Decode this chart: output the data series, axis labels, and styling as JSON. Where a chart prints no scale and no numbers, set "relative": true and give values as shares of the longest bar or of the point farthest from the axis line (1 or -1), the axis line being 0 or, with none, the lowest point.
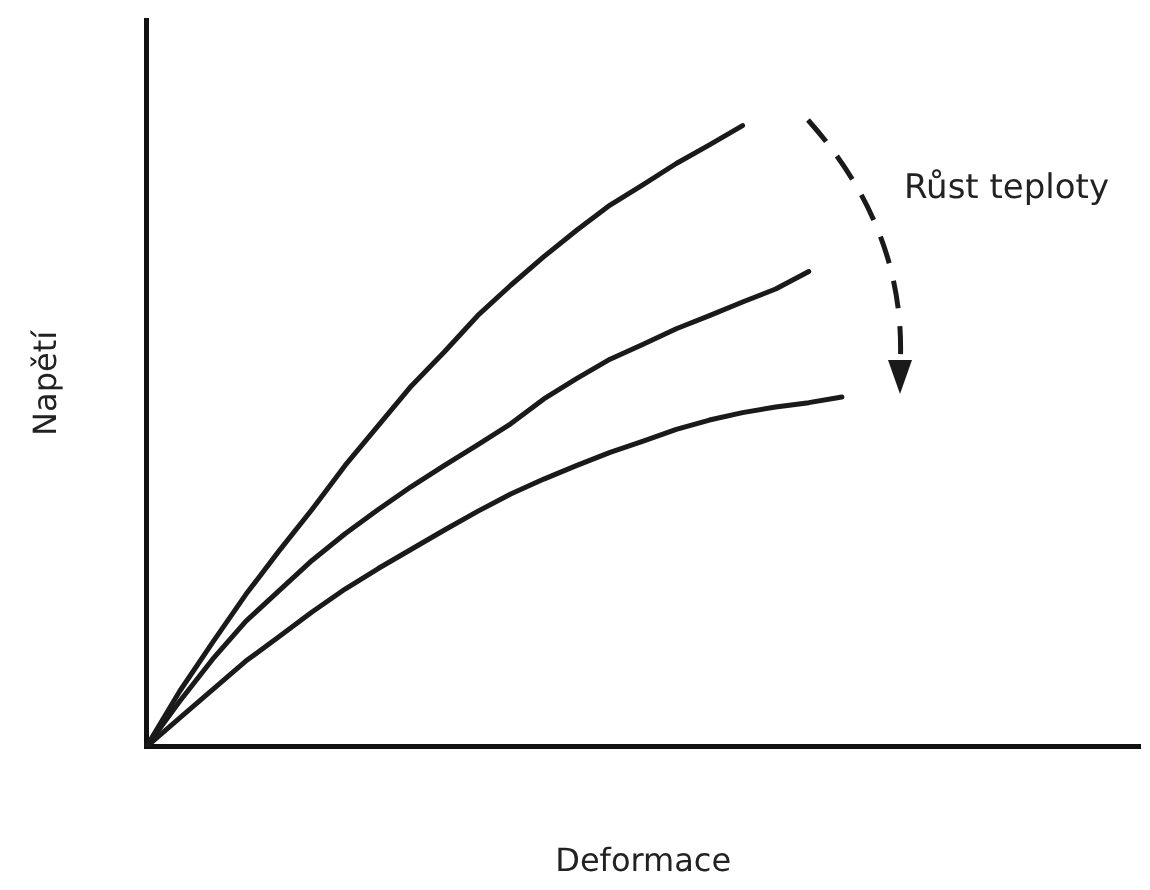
{
  "chart_data": {
    "type": "line",
    "relative": true,
    "xlabel": "Deformace",
    "ylabel": "Napětí",
    "annotations": [
      "Růst teploty"
    ],
    "legend": false,
    "marker": "none",
    "line_style": "solid",
    "categories": [
      null,
      null,
      null,
      null,
      null,
      null,
      null,
      null,
      null,
      null,
      null,
      null,
      null,
      null,
      null,
      null,
      null,
      null,
      null,
      null,
      null,
      null,
      null,
      null,
      null,
      null,
      null,
      null,
      null,
      null,
      null
    ],
    "series": [
      {
        "color": "#1a1a1a",
        "values": [
          0,
          0.089,
          0.168,
          0.245,
          0.315,
          0.382,
          0.453,
          0.517,
          0.581,
          0.636,
          0.694,
          0.743,
          0.789,
          0.832,
          0.872,
          0.905,
          0.939,
          0.969,
          1,
          null,
          null,
          null,
          null,
          null,
          null,
          null,
          null,
          null,
          null,
          null,
          null
        ]
      },
      {
        "color": "#1a1a1a",
        "values": [
          0,
          0.073,
          0.141,
          0.202,
          0.251,
          0.3,
          0.343,
          0.382,
          0.419,
          0.453,
          0.486,
          0.52,
          0.56,
          0.593,
          0.624,
          0.648,
          0.673,
          0.694,
          0.716,
          0.737,
          0.765,
          null,
          null,
          null,
          null,
          null,
          null,
          null,
          null,
          null,
          null
        ]
      },
      {
        "color": "#1a1a1a",
        "values": [
          0,
          0.046,
          0.092,
          0.138,
          0.177,
          0.217,
          0.254,
          0.287,
          0.318,
          0.349,
          0.379,
          0.407,
          0.431,
          0.453,
          0.474,
          0.492,
          0.511,
          0.526,
          0.538,
          0.547,
          0.554,
          0.563,
          null,
          null,
          null,
          null,
          null,
          null,
          null,
          null,
          null
        ]
      }
    ]
  }
}
